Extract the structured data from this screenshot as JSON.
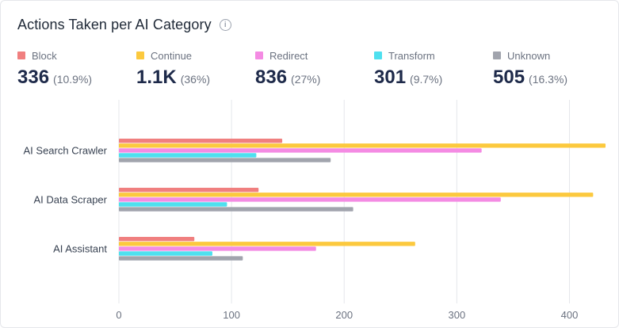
{
  "title": "Actions Taken per AI Category",
  "stats": [
    {
      "label": "Block",
      "value": "336",
      "pct": "(10.9%)",
      "color": "#f07f7f"
    },
    {
      "label": "Continue",
      "value": "1.1K",
      "pct": "(36%)",
      "color": "#fcc93e"
    },
    {
      "label": "Redirect",
      "value": "836",
      "pct": "(27%)",
      "color": "#f48be3"
    },
    {
      "label": "Transform",
      "value": "301",
      "pct": "(9.7%)",
      "color": "#4ee0ef"
    },
    {
      "label": "Unknown",
      "value": "505",
      "pct": "(16.3%)",
      "color": "#a1a4ad"
    }
  ],
  "chart_data": {
    "type": "bar",
    "orientation": "horizontal",
    "categories": [
      "AI Search Crawler",
      "AI Data Scraper",
      "AI Assistant"
    ],
    "series": [
      {
        "name": "Block",
        "values": [
          145,
          124,
          67
        ],
        "color": "#f07f7f"
      },
      {
        "name": "Continue",
        "values": [
          432,
          421,
          263
        ],
        "color": "#fcc93e"
      },
      {
        "name": "Redirect",
        "values": [
          322,
          339,
          175
        ],
        "color": "#f48be3"
      },
      {
        "name": "Transform",
        "values": [
          122,
          96,
          83
        ],
        "color": "#4ee0ef"
      },
      {
        "name": "Unknown",
        "values": [
          188,
          208,
          110
        ],
        "color": "#a1a4ad"
      }
    ],
    "xticks": [
      0,
      100,
      200,
      300,
      400
    ],
    "xlim": [
      0,
      432
    ],
    "grid": true
  }
}
